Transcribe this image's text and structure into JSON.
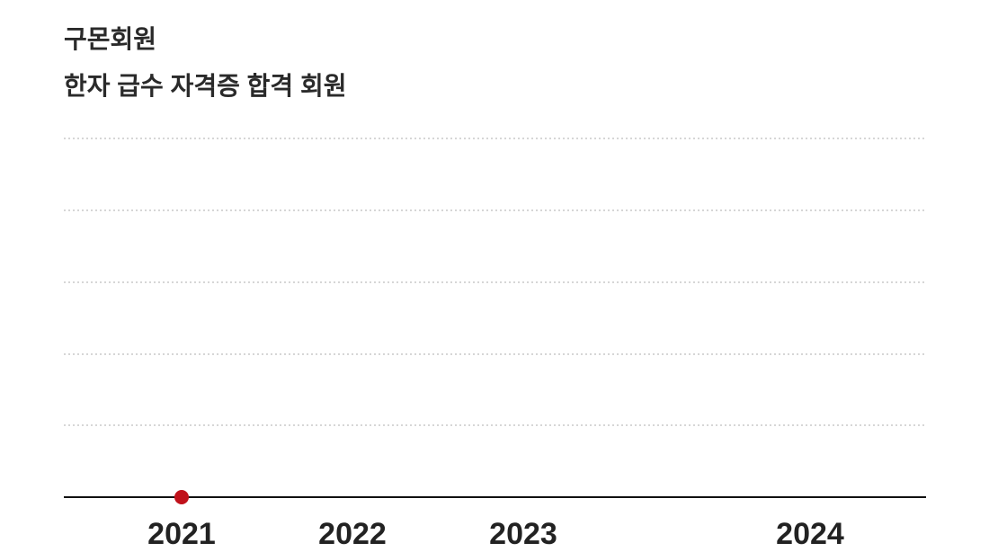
{
  "chart_data": {
    "type": "line",
    "title": "구몬회원",
    "subtitle": "한자 급수 자격증 합격 회원",
    "categories": [
      "2021",
      "2022",
      "2023",
      "2024"
    ],
    "series": [
      {
        "values": [
          0,
          null,
          null,
          null
        ]
      }
    ],
    "grid": true,
    "grid_style": "dotted horizontal",
    "colors": {
      "point": "#c0121b",
      "axis": "#111111",
      "grid": "#c8c8c8",
      "text": "#2a2a2a"
    }
  }
}
